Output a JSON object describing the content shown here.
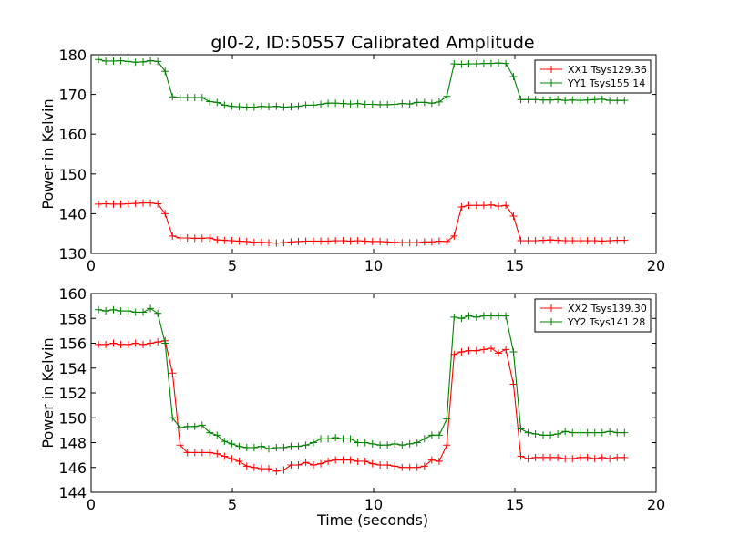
{
  "figure": {
    "title": "gl0-2, ID:50557 Calibrated Amplitude",
    "xlabel": "Time (seconds)"
  },
  "chart_data": [
    {
      "type": "line",
      "title": "gl0-2, ID:50557 Calibrated Amplitude",
      "xlabel": "",
      "ylabel": "Power in Kelvin",
      "xlim": [
        0,
        20
      ],
      "ylim": [
        130,
        180
      ],
      "xticks": [
        "0",
        "5",
        "10",
        "15",
        "20"
      ],
      "yticks": [
        "130",
        "140",
        "150",
        "160",
        "170",
        "180"
      ],
      "grid": false,
      "legend_position": "top-right",
      "x": [
        0.26,
        0.52,
        0.79,
        1.05,
        1.31,
        1.57,
        1.84,
        2.1,
        2.36,
        2.62,
        2.88,
        3.15,
        3.41,
        3.67,
        3.93,
        4.2,
        4.46,
        4.72,
        4.98,
        5.24,
        5.51,
        5.77,
        6.03,
        6.29,
        6.56,
        6.82,
        7.08,
        7.34,
        7.6,
        7.87,
        8.13,
        8.39,
        8.65,
        8.92,
        9.18,
        9.44,
        9.7,
        9.96,
        10.23,
        10.49,
        10.75,
        11.01,
        11.28,
        11.54,
        11.8,
        12.06,
        12.32,
        12.59,
        12.85,
        13.11,
        13.37,
        13.64,
        13.9,
        14.16,
        14.42,
        14.68,
        14.95,
        15.21,
        15.47,
        15.73,
        16.0,
        16.26,
        16.52,
        16.78,
        17.04,
        17.31,
        17.57,
        17.83,
        18.09,
        18.36,
        18.62,
        18.88
      ],
      "series": [
        {
          "name": "XX1 Tsys129.36",
          "color": "#ff0000",
          "values": [
            142.4,
            142.5,
            142.4,
            142.4,
            142.5,
            142.6,
            142.7,
            142.7,
            142.5,
            140.0,
            134.4,
            133.9,
            133.9,
            133.8,
            133.8,
            133.9,
            133.4,
            133.3,
            133.2,
            133.1,
            133.0,
            132.8,
            132.8,
            132.7,
            132.6,
            132.7,
            132.9,
            133.0,
            133.1,
            133.1,
            133.1,
            133.1,
            133.2,
            133.2,
            133.1,
            133.2,
            133.1,
            133.0,
            133.0,
            132.9,
            132.8,
            132.7,
            132.7,
            132.7,
            132.9,
            132.9,
            133.1,
            133.0,
            134.4,
            141.7,
            142.1,
            142.1,
            142.1,
            142.2,
            141.9,
            142.1,
            139.4,
            133.2,
            133.2,
            133.2,
            133.3,
            133.4,
            133.3,
            133.2,
            133.2,
            133.2,
            133.2,
            133.2,
            133.1,
            133.2,
            133.3,
            133.3
          ]
        },
        {
          "name": "YY1 Tsys155.14",
          "color": "#008000",
          "values": [
            178.8,
            178.4,
            178.4,
            178.5,
            178.3,
            178.1,
            178.2,
            178.5,
            178.3,
            175.8,
            169.4,
            169.2,
            169.2,
            169.2,
            169.2,
            168.2,
            168.0,
            167.3,
            167.0,
            166.9,
            166.8,
            166.8,
            167.0,
            166.9,
            167.0,
            166.8,
            166.9,
            167.0,
            167.3,
            167.3,
            167.5,
            167.8,
            167.8,
            167.7,
            167.6,
            167.7,
            167.5,
            167.5,
            167.4,
            167.4,
            167.5,
            167.7,
            167.6,
            168.0,
            168.0,
            167.8,
            168.1,
            169.5,
            177.7,
            177.6,
            177.7,
            177.7,
            177.8,
            177.8,
            177.9,
            177.8,
            174.5,
            168.7,
            168.7,
            168.7,
            168.6,
            168.6,
            168.7,
            168.5,
            168.6,
            168.5,
            168.6,
            168.7,
            168.8,
            168.5,
            168.5,
            168.5
          ]
        }
      ]
    },
    {
      "type": "line",
      "title": "",
      "xlabel": "Time (seconds)",
      "ylabel": "Power in Kelvin",
      "xlim": [
        0,
        20
      ],
      "ylim": [
        144,
        160
      ],
      "xticks": [
        "0",
        "5",
        "10",
        "15",
        "20"
      ],
      "yticks": [
        "144",
        "146",
        "148",
        "150",
        "152",
        "154",
        "156",
        "158",
        "160"
      ],
      "grid": false,
      "legend_position": "top-right",
      "x": [
        0.26,
        0.52,
        0.79,
        1.05,
        1.31,
        1.57,
        1.84,
        2.1,
        2.36,
        2.62,
        2.88,
        3.15,
        3.41,
        3.67,
        3.93,
        4.2,
        4.46,
        4.72,
        4.98,
        5.24,
        5.51,
        5.77,
        6.03,
        6.29,
        6.56,
        6.82,
        7.08,
        7.34,
        7.6,
        7.87,
        8.13,
        8.39,
        8.65,
        8.92,
        9.18,
        9.44,
        9.7,
        9.96,
        10.23,
        10.49,
        10.75,
        11.01,
        11.28,
        11.54,
        11.8,
        12.06,
        12.32,
        12.59,
        12.85,
        13.11,
        13.37,
        13.64,
        13.9,
        14.16,
        14.42,
        14.68,
        14.95,
        15.21,
        15.47,
        15.73,
        16.0,
        16.26,
        16.52,
        16.78,
        17.04,
        17.31,
        17.57,
        17.83,
        18.09,
        18.36,
        18.62,
        18.88
      ],
      "series": [
        {
          "name": "XX2 Tsys139.30",
          "color": "#ff0000",
          "values": [
            155.9,
            155.9,
            156.0,
            155.9,
            155.9,
            156.0,
            155.9,
            156.0,
            156.1,
            156.2,
            153.6,
            147.8,
            147.2,
            147.2,
            147.2,
            147.2,
            147.1,
            146.9,
            146.7,
            146.5,
            146.1,
            146.0,
            145.9,
            145.9,
            145.7,
            145.8,
            146.2,
            146.2,
            146.4,
            146.2,
            146.3,
            146.5,
            146.6,
            146.6,
            146.6,
            146.5,
            146.5,
            146.3,
            146.2,
            146.2,
            146.1,
            146.0,
            146.0,
            146.0,
            146.1,
            146.6,
            146.5,
            147.8,
            155.1,
            155.3,
            155.4,
            155.4,
            155.5,
            155.6,
            155.2,
            155.5,
            152.7,
            146.9,
            146.7,
            146.8,
            146.8,
            146.8,
            146.8,
            146.7,
            146.7,
            146.8,
            146.8,
            146.7,
            146.8,
            146.7,
            146.8,
            146.8
          ]
        },
        {
          "name": "YY2 Tsys141.28",
          "color": "#008000",
          "values": [
            158.7,
            158.6,
            158.7,
            158.6,
            158.6,
            158.5,
            158.5,
            158.8,
            158.4,
            156.0,
            150.0,
            149.2,
            149.3,
            149.3,
            149.4,
            148.8,
            148.6,
            148.1,
            147.9,
            147.7,
            147.6,
            147.6,
            147.7,
            147.5,
            147.6,
            147.6,
            147.7,
            147.7,
            147.8,
            148.0,
            148.3,
            148.3,
            148.4,
            148.3,
            148.3,
            148.0,
            148.0,
            147.9,
            147.8,
            147.8,
            147.9,
            147.8,
            147.9,
            148.0,
            148.3,
            148.6,
            148.6,
            149.9,
            158.1,
            158.0,
            158.2,
            158.1,
            158.2,
            158.2,
            158.2,
            158.2,
            155.3,
            149.1,
            148.8,
            148.7,
            148.6,
            148.6,
            148.7,
            148.9,
            148.8,
            148.8,
            148.8,
            148.8,
            148.8,
            148.9,
            148.8,
            148.8
          ]
        }
      ]
    }
  ]
}
